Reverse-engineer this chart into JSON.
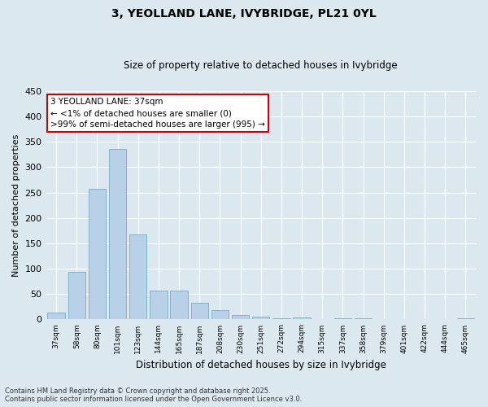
{
  "title": "3, YEOLLAND LANE, IVYBRIDGE, PL21 0YL",
  "subtitle": "Size of property relative to detached houses in Ivybridge",
  "xlabel": "Distribution of detached houses by size in Ivybridge",
  "ylabel": "Number of detached properties",
  "categories": [
    "37sqm",
    "58sqm",
    "80sqm",
    "101sqm",
    "123sqm",
    "144sqm",
    "165sqm",
    "187sqm",
    "208sqm",
    "230sqm",
    "251sqm",
    "272sqm",
    "294sqm",
    "315sqm",
    "337sqm",
    "358sqm",
    "379sqm",
    "401sqm",
    "422sqm",
    "444sqm",
    "465sqm"
  ],
  "values": [
    13,
    93,
    258,
    336,
    167,
    57,
    57,
    33,
    18,
    8,
    5,
    3,
    4,
    0,
    2,
    3,
    0,
    0,
    0,
    0,
    2
  ],
  "bar_color": "#b8d0e8",
  "bar_edge_color": "#7aaac8",
  "background_color": "#dce8f0",
  "grid_color": "#ffffff",
  "ylim": [
    0,
    450
  ],
  "yticks": [
    0,
    50,
    100,
    150,
    200,
    250,
    300,
    350,
    400,
    450
  ],
  "annotation_text": "3 YEOLLAND LANE: 37sqm\n← <1% of detached houses are smaller (0)\n>99% of semi-detached houses are larger (995) →",
  "annotation_box_color": "#ffffff",
  "annotation_box_edge": "#cc0000",
  "highlight_bar_index": 0,
  "footer_line1": "Contains HM Land Registry data © Crown copyright and database right 2025.",
  "footer_line2": "Contains public sector information licensed under the Open Government Licence v3.0."
}
